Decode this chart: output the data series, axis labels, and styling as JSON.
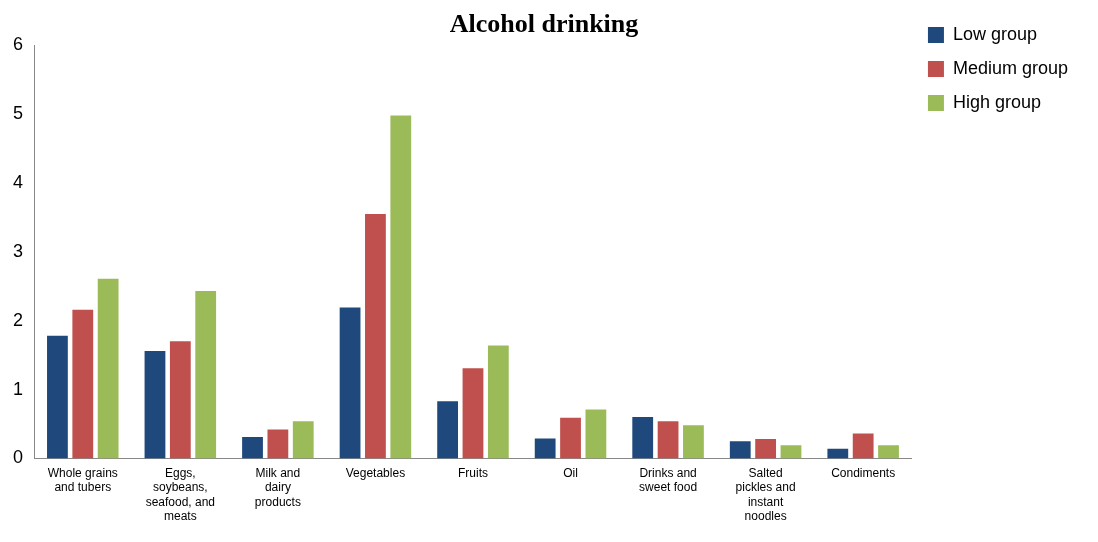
{
  "chart_data": {
    "type": "bar",
    "title": "Alcohol drinking",
    "categories": [
      "Whole grains and tubers",
      "Eggs, soybeans, seafood, and meats",
      "Milk and dairy products",
      "Vegetables",
      "Fruits",
      "Oil",
      "Drinks and sweet food",
      "Salted pickles and instant noodles",
      "Condiments"
    ],
    "series": [
      {
        "name": "Low group",
        "color": "#1f497d",
        "values": [
          1.78,
          1.56,
          0.31,
          2.19,
          0.83,
          0.29,
          0.6,
          0.25,
          0.14
        ]
      },
      {
        "name": "Medium group",
        "color": "#c0504d",
        "values": [
          2.16,
          1.7,
          0.42,
          3.55,
          1.31,
          0.59,
          0.54,
          0.28,
          0.36
        ]
      },
      {
        "name": "High group",
        "color": "#9bbb59",
        "values": [
          2.61,
          2.43,
          0.54,
          4.98,
          1.64,
          0.71,
          0.48,
          0.19,
          0.19
        ]
      }
    ],
    "ylim": [
      0,
      6
    ],
    "yticks": [
      0,
      1,
      2,
      3,
      4,
      5,
      6
    ],
    "grid": false,
    "legend": "top right"
  }
}
